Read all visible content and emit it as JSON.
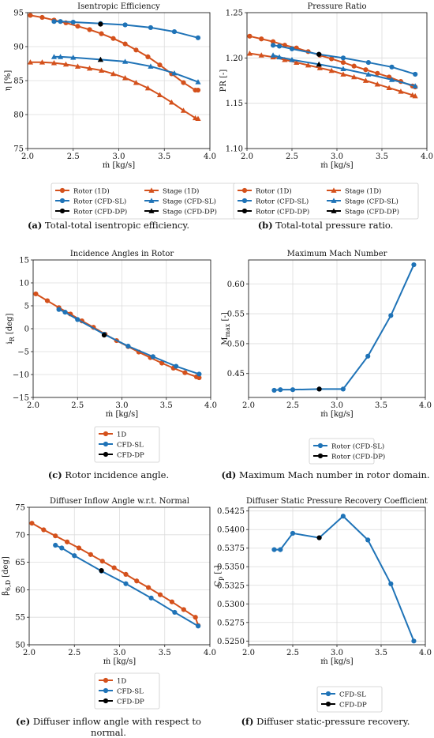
{
  "colors": {
    "orange": "#d4511c",
    "blue": "#1f73b7",
    "black": "#000000",
    "grid": "#dcdcdc"
  },
  "chart_data": [
    {
      "type": "line",
      "title": "Isentropic Efficiency",
      "xlabel": "ṁ [kg/s]",
      "ylabel": "η [%]",
      "xlim": [
        2.0,
        4.0
      ],
      "ylim": [
        75,
        95
      ],
      "xticks": [
        "2.0",
        "2.5",
        "3.0",
        "3.5",
        "4.0"
      ],
      "yticks": [
        "75",
        "80",
        "85",
        "90",
        "95"
      ],
      "grid": true,
      "legend_position": "below",
      "legend_columns": 2,
      "caption_label": "(a)",
      "caption_text": " Total-total isentropic efficiency.",
      "series": [
        {
          "name": "Rotor (1D)",
          "color": "orange",
          "marker": "circle",
          "x": [
            2.03,
            2.16,
            2.29,
            2.42,
            2.55,
            2.68,
            2.81,
            2.94,
            3.07,
            3.19,
            3.32,
            3.45,
            3.58,
            3.71,
            3.84,
            3.87
          ],
          "y": [
            94.6,
            94.3,
            93.9,
            93.5,
            93.0,
            92.5,
            91.9,
            91.2,
            90.4,
            89.5,
            88.5,
            87.3,
            86.0,
            84.7,
            83.6,
            83.6
          ]
        },
        {
          "name": "Stage (1D)",
          "color": "orange",
          "marker": "triangle",
          "x": [
            2.03,
            2.16,
            2.29,
            2.42,
            2.55,
            2.68,
            2.81,
            2.94,
            3.07,
            3.19,
            3.32,
            3.45,
            3.58,
            3.71,
            3.84,
            3.87
          ],
          "y": [
            87.7,
            87.7,
            87.6,
            87.4,
            87.1,
            86.8,
            86.5,
            86.0,
            85.4,
            84.7,
            83.9,
            82.9,
            81.8,
            80.6,
            79.5,
            79.4
          ]
        },
        {
          "name": "Rotor (CFD-SL)",
          "color": "blue",
          "marker": "circle",
          "x": [
            2.29,
            2.36,
            2.5,
            2.8,
            3.07,
            3.35,
            3.61,
            3.87
          ],
          "y": [
            93.7,
            93.7,
            93.6,
            93.4,
            93.2,
            92.8,
            92.2,
            91.3
          ]
        },
        {
          "name": "Stage (CFD-SL)",
          "color": "blue",
          "marker": "triangle",
          "x": [
            2.29,
            2.36,
            2.5,
            2.8,
            3.07,
            3.35,
            3.61,
            3.87
          ],
          "y": [
            88.5,
            88.5,
            88.4,
            88.1,
            87.8,
            87.1,
            86.1,
            84.8
          ]
        },
        {
          "name": "Rotor (CFD-DP)",
          "color": "black",
          "marker": "circle",
          "x": [
            2.8
          ],
          "y": [
            93.3
          ]
        },
        {
          "name": "Stage (CFD-DP)",
          "color": "black",
          "marker": "triangle",
          "x": [
            2.8
          ],
          "y": [
            88.1
          ]
        }
      ]
    },
    {
      "type": "line",
      "title": "Pressure Ratio",
      "xlabel": "ṁ [kg/s]",
      "ylabel": "PR [-]",
      "xlim": [
        2.0,
        4.0
      ],
      "ylim": [
        1.1,
        1.25
      ],
      "xticks": [
        "2.0",
        "2.5",
        "3.0",
        "3.5",
        "4.0"
      ],
      "yticks": [
        "1.10",
        "1.15",
        "1.20",
        "1.25"
      ],
      "grid": true,
      "legend_position": "below",
      "legend_columns": 2,
      "caption_label": "(b)",
      "caption_text": " Total-total pressure ratio.",
      "series": [
        {
          "name": "Rotor (1D)",
          "color": "orange",
          "marker": "circle",
          "x": [
            2.03,
            2.16,
            2.29,
            2.42,
            2.55,
            2.68,
            2.81,
            2.94,
            3.07,
            3.19,
            3.32,
            3.45,
            3.58,
            3.71,
            3.84,
            3.87
          ],
          "y": [
            1.224,
            1.221,
            1.218,
            1.214,
            1.211,
            1.207,
            1.203,
            1.199,
            1.195,
            1.191,
            1.187,
            1.183,
            1.179,
            1.174,
            1.169,
            1.168
          ]
        },
        {
          "name": "Stage (1D)",
          "color": "orange",
          "marker": "triangle",
          "x": [
            2.03,
            2.16,
            2.29,
            2.42,
            2.55,
            2.68,
            2.81,
            2.94,
            3.07,
            3.19,
            3.32,
            3.45,
            3.58,
            3.71,
            3.84,
            3.87
          ],
          "y": [
            1.205,
            1.203,
            1.201,
            1.198,
            1.195,
            1.192,
            1.189,
            1.186,
            1.182,
            1.179,
            1.175,
            1.171,
            1.167,
            1.163,
            1.159,
            1.158
          ]
        },
        {
          "name": "Rotor (CFD-SL)",
          "color": "blue",
          "marker": "circle",
          "x": [
            2.29,
            2.36,
            2.5,
            2.8,
            3.07,
            3.35,
            3.61,
            3.87
          ],
          "y": [
            1.214,
            1.213,
            1.21,
            1.204,
            1.2,
            1.195,
            1.19,
            1.182
          ]
        },
        {
          "name": "Stage (CFD-SL)",
          "color": "blue",
          "marker": "triangle",
          "x": [
            2.29,
            2.36,
            2.5,
            2.8,
            3.07,
            3.35,
            3.61,
            3.87
          ],
          "y": [
            1.203,
            1.201,
            1.198,
            1.193,
            1.188,
            1.182,
            1.176,
            1.169
          ]
        },
        {
          "name": "Rotor (CFD-DP)",
          "color": "black",
          "marker": "circle",
          "x": [
            2.8
          ],
          "y": [
            1.204
          ]
        },
        {
          "name": "Stage (CFD-DP)",
          "color": "black",
          "marker": "triangle",
          "x": [
            2.8
          ],
          "y": [
            1.193
          ]
        }
      ]
    },
    {
      "type": "line",
      "title": "Incidence Angles in Rotor",
      "xlabel": "ṁ [kg/s]",
      "ylabel": "i_R [deg]",
      "xlim": [
        2.0,
        4.0
      ],
      "ylim": [
        -15,
        15
      ],
      "xticks": [
        "2.0",
        "2.5",
        "3.0",
        "3.5",
        "4.0"
      ],
      "yticks": [
        "−15",
        "−10",
        "−5",
        "0",
        "5",
        "10",
        "15"
      ],
      "grid": true,
      "legend_position": "below",
      "legend_columns": 1,
      "caption_label": "(c)",
      "caption_text": " Rotor incidence angle.",
      "series": [
        {
          "name": "1D",
          "color": "orange",
          "marker": "circle",
          "x": [
            2.03,
            2.16,
            2.29,
            2.42,
            2.55,
            2.68,
            2.81,
            2.94,
            3.07,
            3.19,
            3.32,
            3.45,
            3.58,
            3.71,
            3.84,
            3.87
          ],
          "y": [
            7.6,
            6.1,
            4.6,
            3.2,
            1.7,
            0.3,
            -1.2,
            -2.6,
            -3.9,
            -5.1,
            -6.3,
            -7.5,
            -8.6,
            -9.6,
            -10.5,
            -10.7
          ]
        },
        {
          "name": "CFD-SL",
          "color": "blue",
          "marker": "circle",
          "x": [
            2.29,
            2.36,
            2.5,
            2.8,
            3.07,
            3.35,
            3.61,
            3.87
          ],
          "y": [
            4.2,
            3.6,
            2.0,
            -1.2,
            -3.8,
            -6.1,
            -8.2,
            -9.9
          ]
        },
        {
          "name": "CFD-DP",
          "color": "black",
          "marker": "circle",
          "x": [
            2.8
          ],
          "y": [
            -1.4
          ]
        }
      ]
    },
    {
      "type": "line",
      "title": "Maximum Mach Number",
      "xlabel": "ṁ [kg/s]",
      "ylabel": "M_max [-]",
      "xlim": [
        2.0,
        4.0
      ],
      "ylim": [
        0.41,
        0.64
      ],
      "xticks": [
        "2.0",
        "2.5",
        "3.0",
        "3.5",
        "4.0"
      ],
      "yticks": [
        "0.45",
        "0.50",
        "0.55",
        "0.60"
      ],
      "grid": true,
      "legend_position": "below",
      "legend_columns": 1,
      "caption_label": "(d)",
      "caption_text": " Maximum Mach number in rotor domain.",
      "series": [
        {
          "name": "Rotor (CFD-SL)",
          "color": "blue",
          "marker": "circle",
          "x": [
            2.29,
            2.36,
            2.5,
            2.8,
            3.07,
            3.35,
            3.61,
            3.87
          ],
          "y": [
            0.422,
            0.423,
            0.423,
            0.424,
            0.424,
            0.479,
            0.547,
            0.632
          ]
        },
        {
          "name": "Rotor (CFD-DP)",
          "color": "black",
          "marker": "circle",
          "x": [
            2.8
          ],
          "y": [
            0.424
          ]
        }
      ]
    },
    {
      "type": "line",
      "title": "Diffuser Inflow Angle w.r.t. Normal",
      "xlabel": "ṁ [kg/s]",
      "ylabel": "β_{6,D} [deg]",
      "xlim": [
        2.0,
        4.0
      ],
      "ylim": [
        50,
        75
      ],
      "xticks": [
        "2.0",
        "2.5",
        "3.0",
        "3.5",
        "4.0"
      ],
      "yticks": [
        "50",
        "55",
        "60",
        "65",
        "70",
        "75"
      ],
      "grid": true,
      "legend_position": "below",
      "legend_columns": 1,
      "caption_label": "(e)",
      "caption_text": " Diffuser inflow angle with respect to normal.",
      "series": [
        {
          "name": "1D",
          "color": "orange",
          "marker": "circle",
          "x": [
            2.03,
            2.16,
            2.29,
            2.42,
            2.55,
            2.68,
            2.81,
            2.94,
            3.07,
            3.19,
            3.32,
            3.45,
            3.58,
            3.71,
            3.84,
            3.87
          ],
          "y": [
            72.1,
            70.9,
            69.8,
            68.7,
            67.6,
            66.4,
            65.2,
            64.0,
            62.8,
            61.6,
            60.4,
            59.1,
            57.8,
            56.4,
            55.0,
            53.5
          ]
        },
        {
          "name": "CFD-SL",
          "color": "blue",
          "marker": "circle",
          "x": [
            2.29,
            2.36,
            2.5,
            2.8,
            3.07,
            3.35,
            3.61,
            3.87
          ],
          "y": [
            68.1,
            67.6,
            66.2,
            63.4,
            61.1,
            58.5,
            55.9,
            53.4
          ]
        },
        {
          "name": "CFD-DP",
          "color": "black",
          "marker": "circle",
          "x": [
            2.8
          ],
          "y": [
            63.5
          ]
        }
      ]
    },
    {
      "type": "line",
      "title": "Diffuser Static Pressure Recovery Coefficient",
      "xlabel": "ṁ [kg/s]",
      "ylabel": "C_p [-]",
      "xlim": [
        2.0,
        4.0
      ],
      "ylim": [
        0.5245,
        0.543
      ],
      "xticks": [
        "2.0",
        "2.5",
        "3.0",
        "3.5",
        "4.0"
      ],
      "yticks": [
        "0.5250",
        "0.5275",
        "0.5300",
        "0.5325",
        "0.5350",
        "0.5375",
        "0.5400",
        "0.5425"
      ],
      "grid": true,
      "legend_position": "below",
      "legend_columns": 1,
      "caption_label": "(f)",
      "caption_text": " Diffuser static-pressure recovery.",
      "series": [
        {
          "name": "CFD-SL",
          "color": "blue",
          "marker": "circle",
          "x": [
            2.29,
            2.36,
            2.5,
            2.8,
            3.07,
            3.35,
            3.61,
            3.87
          ],
          "y": [
            0.5373,
            0.5373,
            0.5395,
            0.5389,
            0.5418,
            0.5386,
            0.5327,
            0.525
          ]
        },
        {
          "name": "CFD-DP",
          "color": "black",
          "marker": "circle",
          "x": [
            2.8
          ],
          "y": [
            0.5389
          ]
        }
      ]
    }
  ]
}
